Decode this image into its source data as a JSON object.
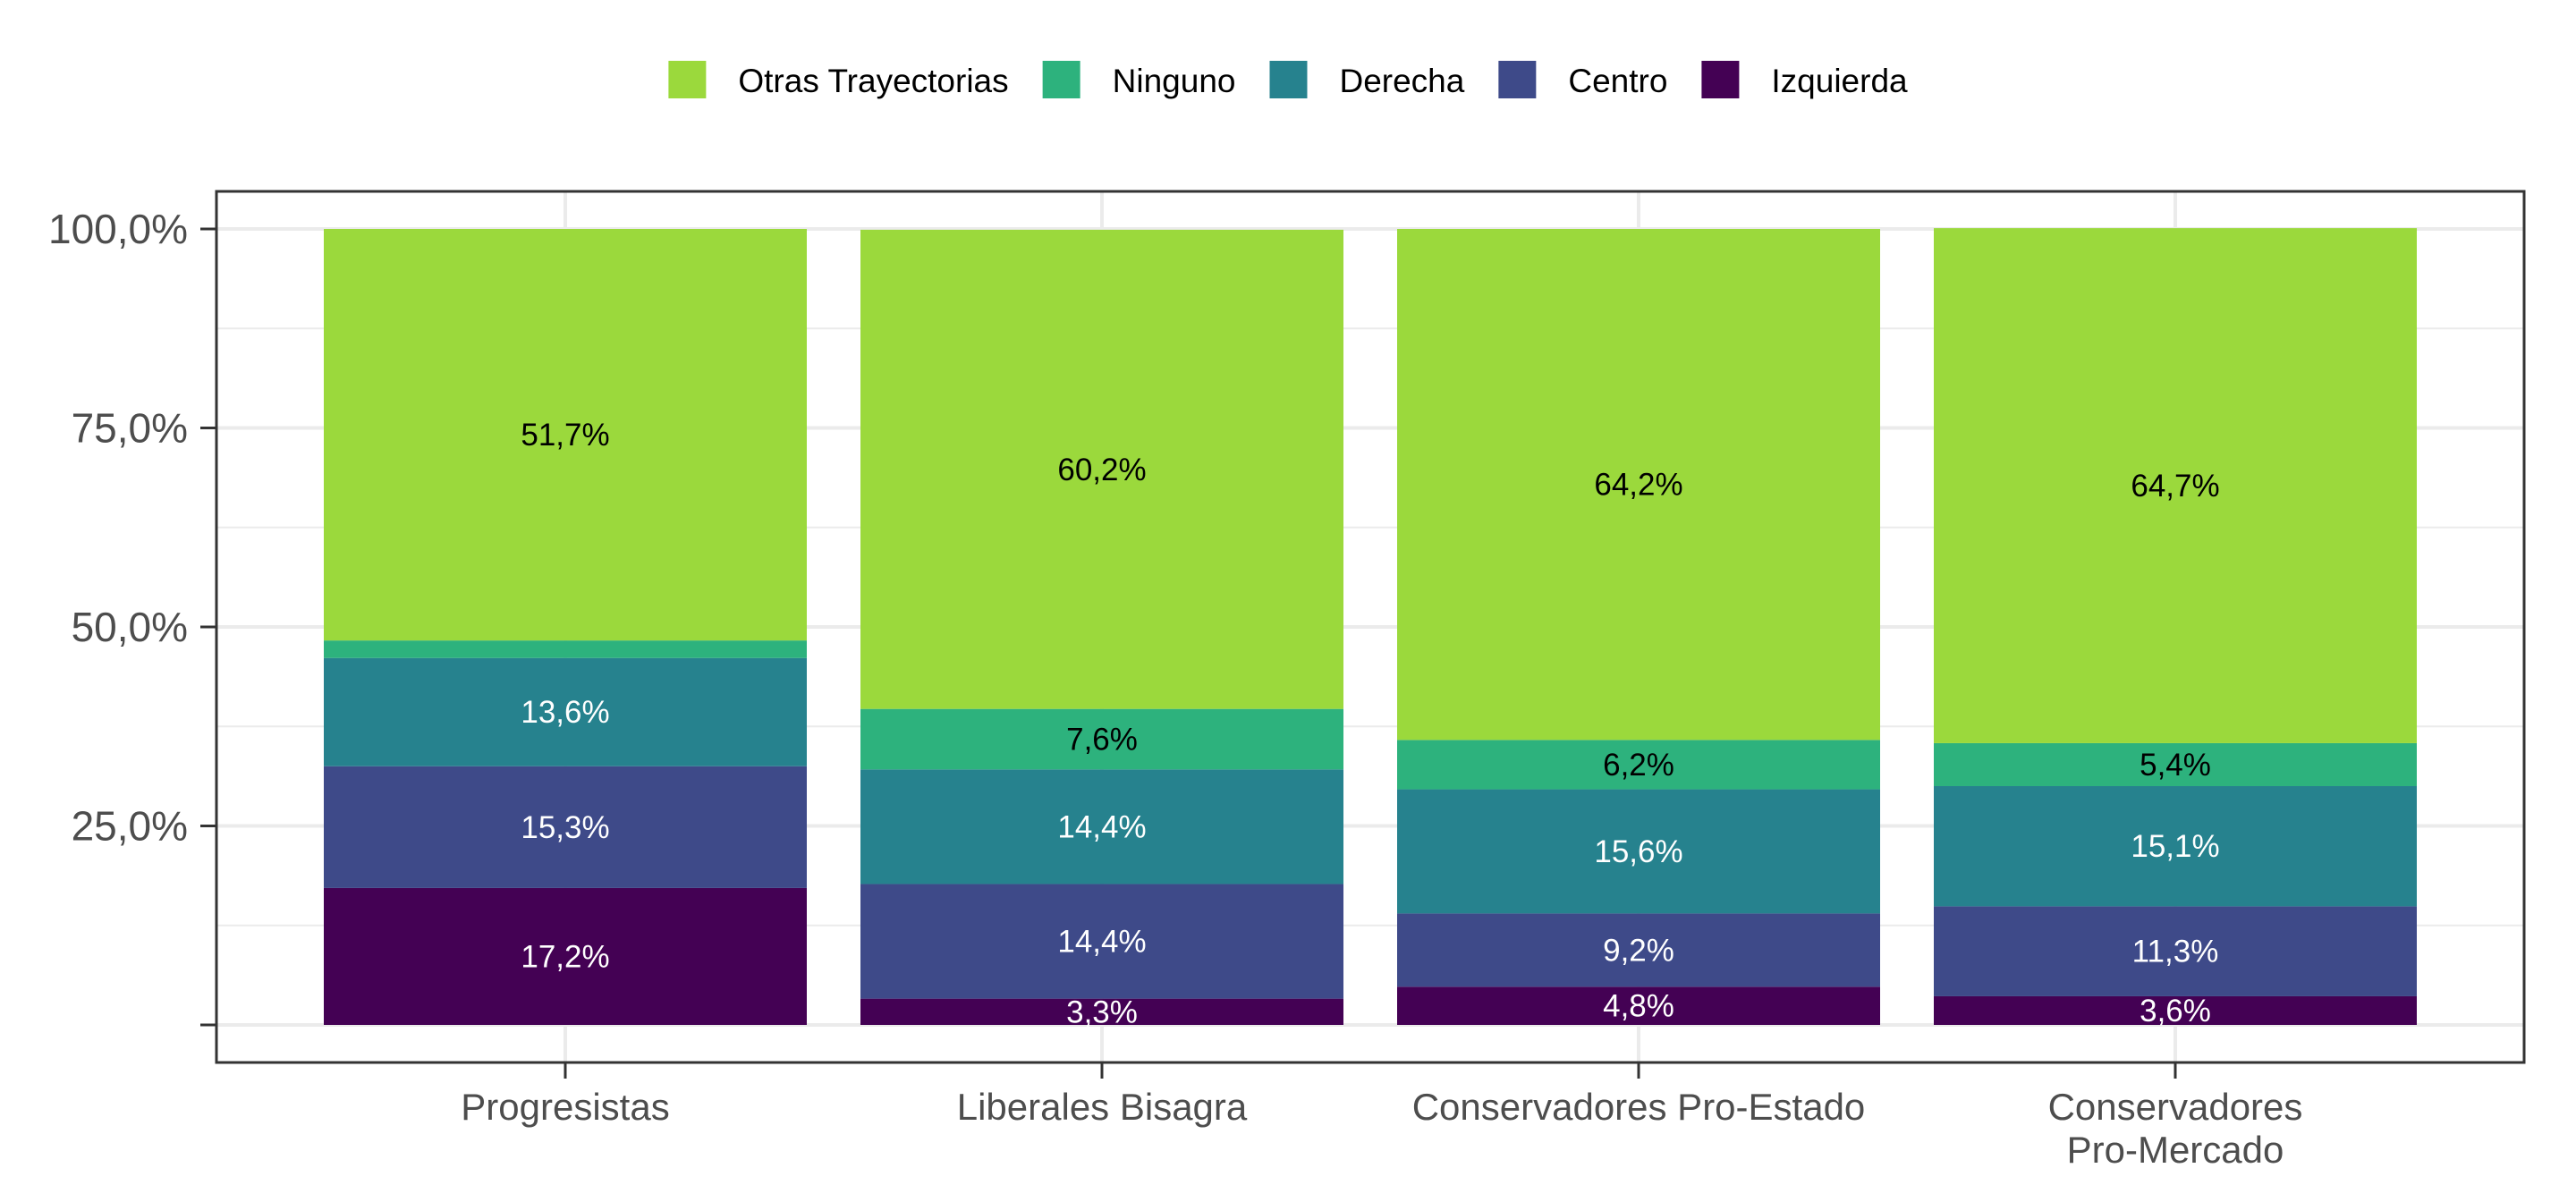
{
  "chart_data": {
    "type": "bar",
    "stacked": true,
    "categories": [
      "Progresistas",
      "Liberales Bisagra",
      "Conservadores Pro-Estado",
      "Conservadores\nPro-Mercado"
    ],
    "series": [
      {
        "name": "Izquierda",
        "color": "#440154",
        "label_color": "#ffffff",
        "values": [
          17.2,
          3.3,
          4.8,
          3.6
        ],
        "labels": [
          "17,2%",
          "3,3%",
          "4,8%",
          "3,6%"
        ]
      },
      {
        "name": "Centro",
        "color": "#3e4a89",
        "label_color": "#ffffff",
        "values": [
          15.3,
          14.4,
          9.2,
          11.3
        ],
        "labels": [
          "15,3%",
          "14,4%",
          "9,2%",
          "11,3%"
        ]
      },
      {
        "name": "Derecha",
        "color": "#26828e",
        "label_color": "#ffffff",
        "values": [
          13.6,
          14.4,
          15.6,
          15.1
        ],
        "labels": [
          "13,6%",
          "14,4%",
          "15,6%",
          "15,1%"
        ]
      },
      {
        "name": "Ninguno",
        "color": "#2db27d",
        "label_color": "#000000",
        "values": [
          2.2,
          7.6,
          6.2,
          5.4
        ],
        "labels": [
          "",
          "7,6%",
          "6,2%",
          "5,4%"
        ]
      },
      {
        "name": "Otras Trayectorias",
        "color": "#9bd93c",
        "label_color": "#000000",
        "values": [
          51.7,
          60.2,
          64.2,
          64.7
        ],
        "labels": [
          "51,7%",
          "60,2%",
          "64,2%",
          "64,7%"
        ]
      }
    ],
    "legend_order": [
      "Otras Trayectorias",
      "Ninguno",
      "Derecha",
      "Centro",
      "Izquierda"
    ],
    "legend_position": "top",
    "y_ticks": [
      25,
      50,
      75,
      100
    ],
    "y_tick_labels": [
      "25,0%",
      "50,0%",
      "75,0%",
      "100,0%"
    ],
    "ylim": [
      0,
      100
    ],
    "grid": true,
    "xlabel": "",
    "ylabel": "",
    "title": ""
  }
}
